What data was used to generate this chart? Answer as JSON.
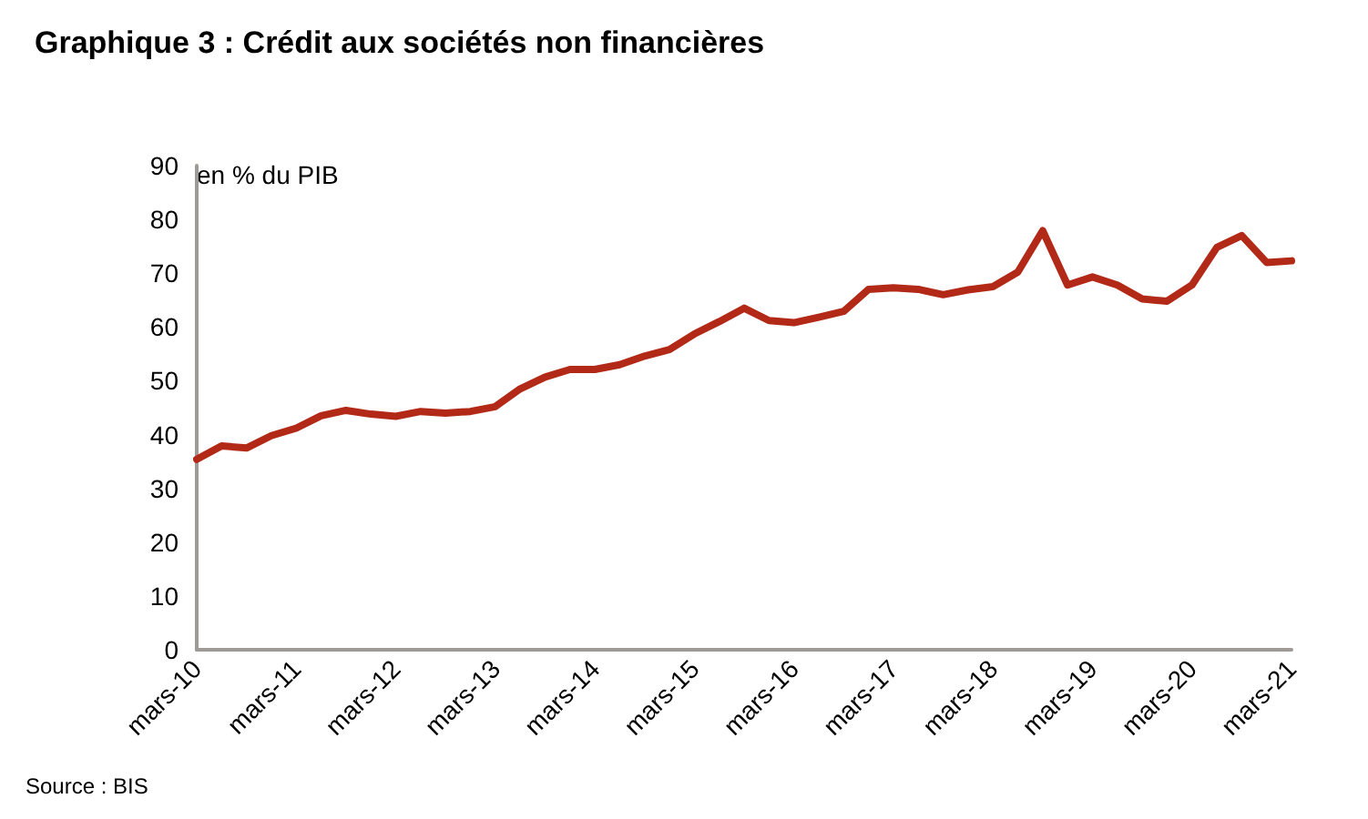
{
  "chart_data": {
    "type": "line",
    "title": "Graphique 3 : Crédit aux sociétés non financières",
    "ylabel": "en % du PIB",
    "annotations": [
      "Source : BIS"
    ],
    "categories": [
      "mars-10",
      null,
      null,
      null,
      "mars-11",
      null,
      null,
      null,
      "mars-12",
      null,
      null,
      null,
      "mars-13",
      null,
      null,
      null,
      "mars-14",
      null,
      null,
      null,
      "mars-15",
      null,
      null,
      null,
      "mars-16",
      null,
      null,
      null,
      "mars-17",
      null,
      null,
      null,
      "mars-18",
      null,
      null,
      null,
      "mars-19",
      null,
      null,
      null,
      "mars-20",
      null,
      null,
      null,
      "mars-21"
    ],
    "series": [
      {
        "color": "#b22a17",
        "values": [
          35.4,
          37.9,
          37.5,
          39.8,
          41.2,
          43.5,
          44.5,
          43.8,
          43.4,
          44.3,
          44,
          44.3,
          45.2,
          48.5,
          50.7,
          52.1,
          52.1,
          53,
          54.6,
          55.8,
          58.7,
          61,
          63.5,
          61.2,
          60.8,
          61.8,
          62.9,
          67,
          67.3,
          67,
          66,
          66.9,
          67.5,
          70.2,
          77.9,
          67.8,
          69.3,
          67.8,
          65.2,
          64.8,
          67.8,
          74.8,
          77,
          72,
          72.3
        ]
      }
    ],
    "ylim": [
      0,
      90
    ],
    "yticks": [
      0,
      10,
      20,
      30,
      40,
      50,
      60,
      70,
      80,
      90
    ],
    "grid": false,
    "marker": "none",
    "line_style": "solid"
  }
}
